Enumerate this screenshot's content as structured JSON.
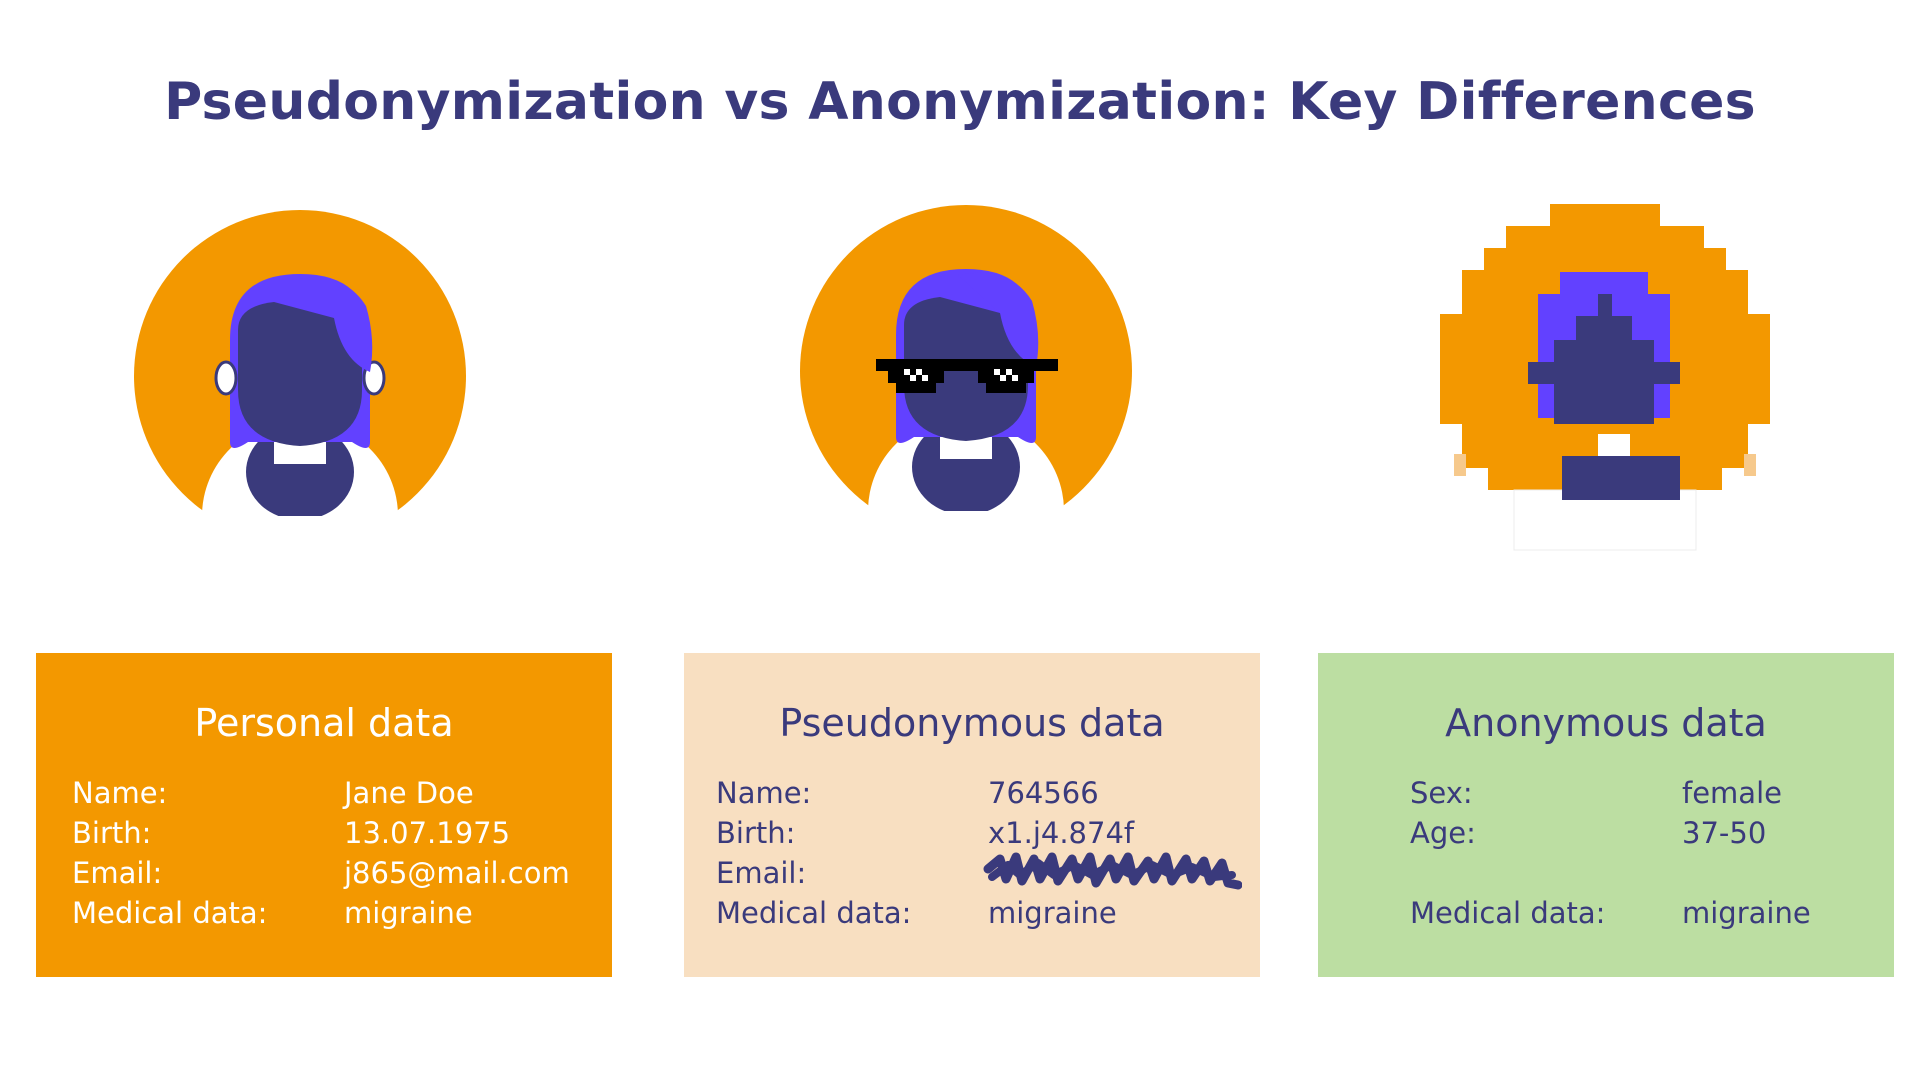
{
  "title": "Pseudonymization vs Anonymization: Key Differences",
  "colors": {
    "title": "#3a3a7c",
    "orange": "#f39800",
    "purple": "#6241ff",
    "navy": "#3a3a7c",
    "peach": "#f8dfc1",
    "green": "#bcdea2"
  },
  "avatars": [
    {
      "name": "personal-avatar",
      "variant": "plain"
    },
    {
      "name": "pseudonymous-avatar",
      "variant": "pixel-sunglasses"
    },
    {
      "name": "anonymous-avatar",
      "variant": "pixelated"
    }
  ],
  "cards": {
    "personal": {
      "title": "Personal data",
      "rows": [
        {
          "label": "Name:",
          "value": "Jane Doe"
        },
        {
          "label": "Birth:",
          "value": "13.07.1975"
        },
        {
          "label": "Email:",
          "value": "j865@mail.com"
        },
        {
          "label": "Medical data:",
          "value": "migraine"
        }
      ]
    },
    "pseudonymous": {
      "title": "Pseudonymous data",
      "rows": [
        {
          "label": "Name:",
          "value": "764566"
        },
        {
          "label": "Birth:",
          "value": "x1.j4.874f"
        },
        {
          "label": "Email:",
          "value": ""
        },
        {
          "label": "Medical data:",
          "value": "migraine"
        }
      ]
    },
    "anonymous": {
      "title": "Anonymous data",
      "rows": [
        {
          "label": "Sex:",
          "value": "female"
        },
        {
          "label": "Age:",
          "value": "37-50"
        },
        {
          "label": "Medical data:",
          "value": "migraine"
        }
      ]
    }
  }
}
